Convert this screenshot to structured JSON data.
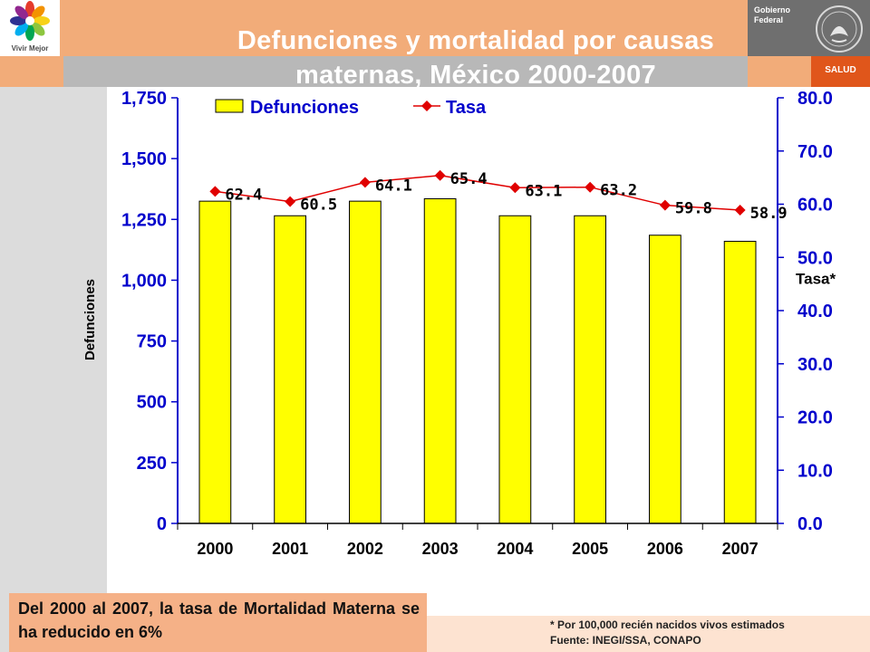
{
  "header": {
    "logo_caption": "Vivir Mejor",
    "title_line1": "Defunciones y mortalidad por causas",
    "title_line2": "maternas, México 2000-2007",
    "gov_line1": "Gobierno",
    "gov_line2": "Federal",
    "salud_label": "SALUD"
  },
  "colors": {
    "bar_fill": "#ffff00",
    "line": "#e00000",
    "axis": "#0000cc",
    "top_bar": "#f2ac79",
    "salud": "#e0561b"
  },
  "chart_data": {
    "type": "bar",
    "title": "Defunciones y mortalidad por causas maternas, México 2000-2007",
    "categories": [
      "2000",
      "2001",
      "2002",
      "2003",
      "2004",
      "2005",
      "2006",
      "2007"
    ],
    "ylabel": "Defunciones",
    "ylabel_right": "Tasa*",
    "ylim": [
      0,
      1750
    ],
    "ylim_right": [
      0,
      80
    ],
    "yticks": [
      "0",
      "250",
      "500",
      "750",
      "1,000",
      "1,250",
      "1,500",
      "1,750"
    ],
    "yticks_right": [
      "0.0",
      "10.0",
      "20.0",
      "30.0",
      "40.0",
      "50.0",
      "60.0",
      "70.0",
      "80.0"
    ],
    "legend_position": "top",
    "grid": false,
    "series": [
      {
        "name": "Defunciones",
        "type": "bar",
        "axis": "left",
        "values": [
          1325,
          1265,
          1325,
          1335,
          1265,
          1265,
          1185,
          1160
        ]
      },
      {
        "name": "Tasa",
        "type": "line",
        "axis": "right",
        "values": [
          62.4,
          60.5,
          64.1,
          65.4,
          63.1,
          63.2,
          59.8,
          58.9
        ],
        "labels": [
          "62.4",
          "60.5",
          "64.1",
          "65.4",
          "63.1",
          "63.2",
          "59.8",
          "58.9"
        ]
      }
    ]
  },
  "notes": {
    "summary": "Del 2000 al 2007, la tasa de Mortalidad Materna se ha reducido en 6%",
    "footnote": "* Por 100,000 recién nacidos vivos estimados",
    "source": "Fuente: INEGI/SSA, CONAPO"
  }
}
